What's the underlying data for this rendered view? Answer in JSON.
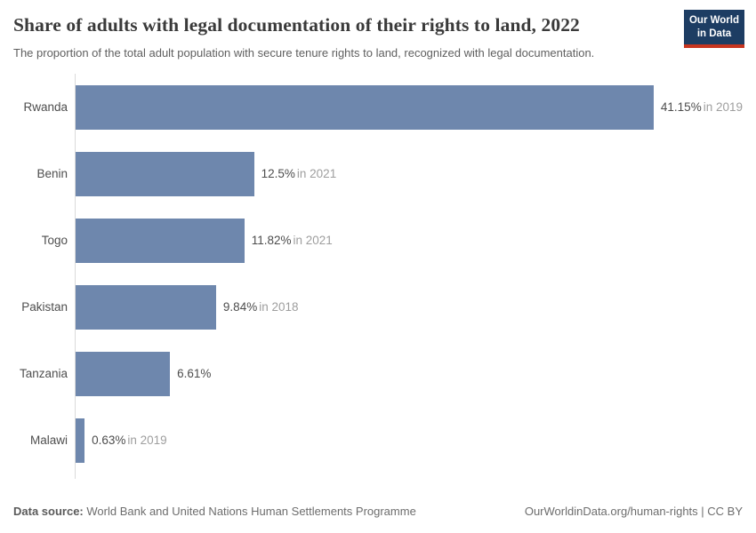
{
  "header": {
    "title": "Share of adults with legal documentation of their rights to land, 2022",
    "subtitle": "The proportion of the total adult population with secure tenure rights to land, recognized with legal documentation.",
    "logo": {
      "line1": "Our World",
      "line2": "in Data",
      "bg_color": "#1d3d63",
      "accent_color": "#c7351f"
    }
  },
  "chart_data": {
    "type": "bar",
    "orientation": "horizontal",
    "title": "Share of adults with legal documentation of their rights to land, 2022",
    "unit": "%",
    "categories": [
      "Rwanda",
      "Benin",
      "Togo",
      "Pakistan",
      "Tanzania",
      "Malawi"
    ],
    "values": [
      41.15,
      12.5,
      11.82,
      9.84,
      6.61,
      0.63
    ],
    "value_labels": [
      "41.15%",
      "12.5%",
      "11.82%",
      "9.84%",
      "6.61%",
      "0.63%"
    ],
    "year_notes": [
      "in 2019",
      "in 2021",
      "in 2021",
      "in 2018",
      "",
      "in 2019"
    ],
    "bar_color": "#6e87ad",
    "axis_color": "#dadada",
    "xlim": [
      0,
      47.7
    ],
    "grid": false,
    "legend": "none"
  },
  "footer": {
    "source_label": "Data source:",
    "source_text": "World Bank and United Nations Human Settlements Programme",
    "credit": "OurWorldinData.org/human-rights | CC BY"
  }
}
